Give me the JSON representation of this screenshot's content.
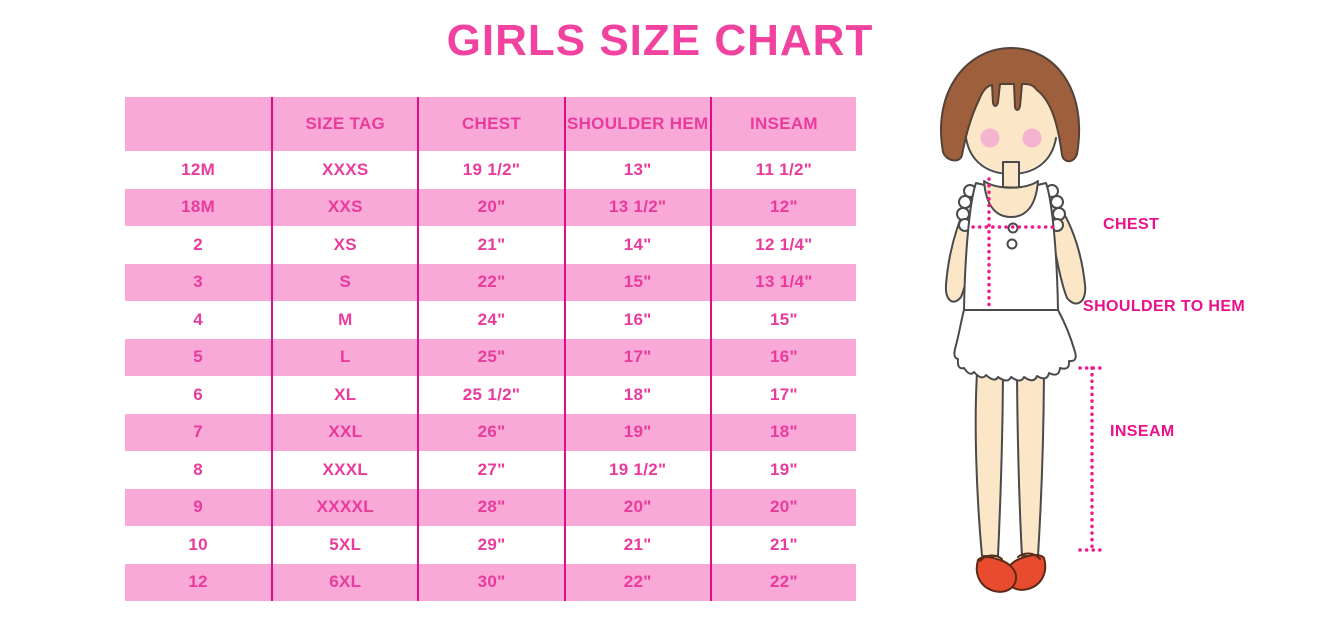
{
  "page": {
    "title": "GIRLS SIZE CHART"
  },
  "chart_data": {
    "type": "table",
    "title": "GIRLS SIZE CHART",
    "columns": [
      "",
      "SIZE TAG",
      "CHEST",
      "SHOULDER HEM",
      "INSEAM"
    ],
    "rows": [
      [
        "12M",
        "XXXS",
        "19 1/2\"",
        "13\"",
        "11 1/2\""
      ],
      [
        "18M",
        "XXS",
        "20\"",
        "13 1/2\"",
        "12\""
      ],
      [
        "2",
        "XS",
        "21\"",
        "14\"",
        "12 1/4\""
      ],
      [
        "3",
        "S",
        "22\"",
        "15\"",
        "13 1/4\""
      ],
      [
        "4",
        "M",
        "24\"",
        "16\"",
        "15\""
      ],
      [
        "5",
        "L",
        "25\"",
        "17\"",
        "16\""
      ],
      [
        "6",
        "XL",
        "25 1/2\"",
        "18\"",
        "17\""
      ],
      [
        "7",
        "XXL",
        "26\"",
        "19\"",
        "18\""
      ],
      [
        "8",
        "XXXL",
        "27\"",
        "19 1/2\"",
        "19\""
      ],
      [
        "9",
        "XXXXL",
        "28\"",
        "20\"",
        "20\""
      ],
      [
        "10",
        "5XL",
        "29\"",
        "21\"",
        "21\""
      ],
      [
        "12",
        "6XL",
        "30\"",
        "22\"",
        "22\""
      ]
    ],
    "layout": {
      "stripe_pattern": "rows alternate white/pink starting white",
      "header_background": "pink"
    }
  },
  "figure": {
    "description": "cartoon girl with brown bob hair, white ruffled top and skirt, red mary-jane shoes",
    "labels": {
      "chest": "CHEST",
      "shoulder_to_hem": "SHOULDER TO HEM",
      "inseam": "INSEAM"
    }
  },
  "colors": {
    "title_pink": "#F0429E",
    "row_pink": "#F9A9D8",
    "divider_pink": "#E00D84",
    "cell_text_pink": "#E93B9C",
    "label_magenta": "#EA118C",
    "dotted_line_magenta": "#EC1A8C",
    "hair_brown": "#9D5F3C",
    "skin": "#FBE6C8",
    "blush": "#F4B3CF",
    "shoe_red": "#E94B2E"
  }
}
